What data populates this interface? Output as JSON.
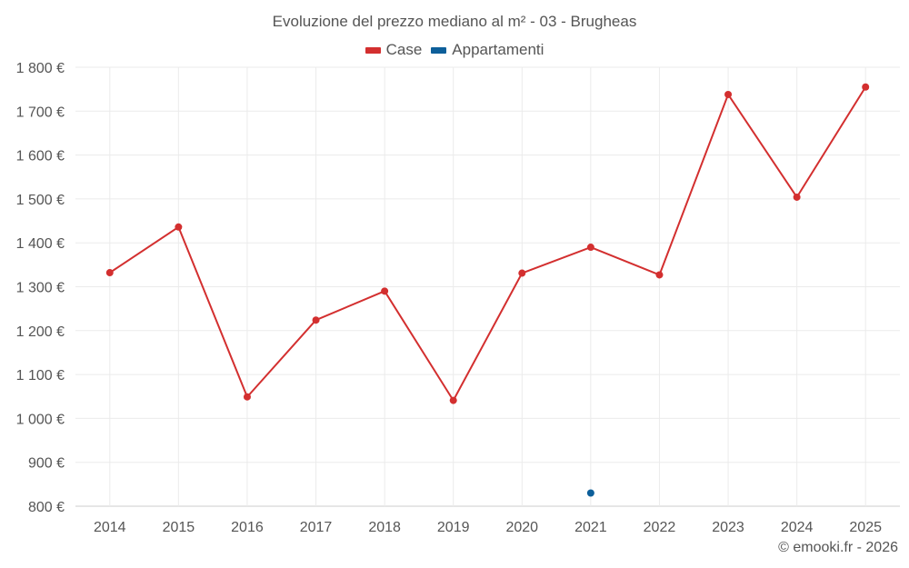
{
  "chart_data": {
    "type": "line",
    "title": "Evoluzione del prezzo mediano al m² - 03 - Brugheas",
    "categories": [
      "2014",
      "2015",
      "2016",
      "2017",
      "2018",
      "2019",
      "2020",
      "2021",
      "2022",
      "2023",
      "2024",
      "2025"
    ],
    "series": [
      {
        "name": "Case",
        "color": "#d32f2f",
        "values": [
          1332,
          1436,
          1049,
          1224,
          1290,
          1041,
          1331,
          1390,
          1327,
          1738,
          1504,
          1755
        ]
      },
      {
        "name": "Appartamenti",
        "color": "#0d5f9a",
        "values": [
          null,
          null,
          null,
          null,
          null,
          null,
          null,
          830,
          null,
          null,
          null,
          null
        ]
      }
    ],
    "ylim": [
      800,
      1800
    ],
    "yticks": [
      800,
      900,
      1000,
      1100,
      1200,
      1300,
      1400,
      1500,
      1600,
      1700,
      1800
    ],
    "ytick_labels": [
      "800 €",
      "900 €",
      "1 000 €",
      "1 100 €",
      "1 200 €",
      "1 300 €",
      "1 400 €",
      "1 500 €",
      "1 600 €",
      "1 700 €",
      "1 800 €"
    ],
    "grid": true,
    "legend_position": "top-center"
  },
  "credit": "© emooki.fr - 2026"
}
